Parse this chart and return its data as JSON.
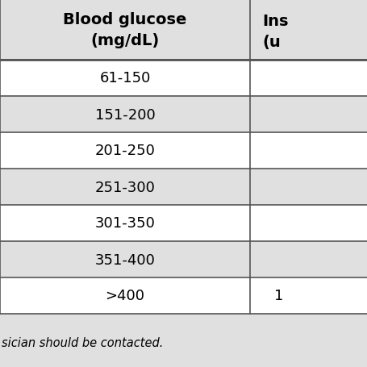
{
  "col1_header": "Blood glucose\n(mg/dL)",
  "col2_header_visible": "Ins",
  "col2_subheader_visible": "(u",
  "rows": [
    [
      "61-150",
      ""
    ],
    [
      "151-200",
      ""
    ],
    [
      "201-250",
      ""
    ],
    [
      "251-300",
      ""
    ],
    [
      "301-350",
      ""
    ],
    [
      "351-400",
      ""
    ],
    [
      ">400",
      "1"
    ]
  ],
  "footnote": "sician should be contacted.",
  "bg_color": "#e0e0e0",
  "row_colors": [
    "#ffffff",
    "#e0e0e0"
  ],
  "border_color": "#555555",
  "text_color": "#000000",
  "fig_width": 4.56,
  "fig_height": 4.56,
  "dpi": 100
}
